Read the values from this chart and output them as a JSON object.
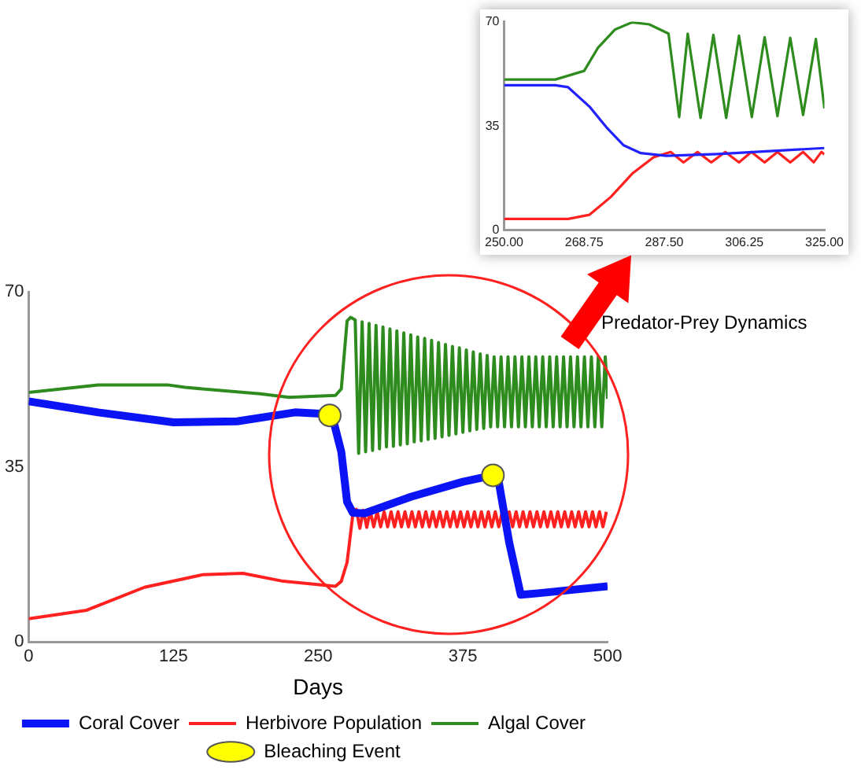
{
  "chart_data": [
    {
      "type": "line",
      "annotations": [
        "Predator-Prey Dynamics"
      ],
      "xlim": [
        250,
        325
      ],
      "xticks": [
        {
          "value": 250,
          "label": "250.00"
        },
        {
          "value": 268.75,
          "label": "268.75"
        },
        {
          "value": 287.5,
          "label": "287.50"
        },
        {
          "value": 306.25,
          "label": "306.25"
        },
        {
          "value": 325,
          "label": "325.00"
        }
      ],
      "ylim": [
        0,
        70
      ],
      "yticks": [
        0,
        35,
        70
      ],
      "series": [
        {
          "color": "#2e8b1e",
          "x": [
            250,
            262,
            268.75,
            272,
            276,
            280,
            284,
            288.5,
            291,
            293,
            296,
            299,
            302,
            305,
            308,
            311,
            314,
            317,
            320,
            323,
            325
          ],
          "values": [
            50.6,
            50.6,
            53.5,
            61.3,
            67.4,
            69.8,
            69.1,
            66,
            38,
            66,
            37.7,
            65.6,
            37.7,
            65.3,
            38,
            64.8,
            38.3,
            64.6,
            38.7,
            64.2,
            40.9
          ]
        },
        {
          "color": "#2222ff",
          "x": [
            250,
            262,
            265,
            270,
            274,
            278,
            282,
            288,
            300,
            325
          ],
          "values": [
            48.7,
            48.7,
            48,
            41.5,
            34.5,
            28.5,
            25.9,
            25,
            25.6,
            27.6
          ]
        },
        {
          "color": "#ff2020",
          "x": [
            250,
            265,
            270,
            275,
            280,
            285,
            289,
            292,
            295.3,
            298.5,
            301.8,
            305,
            307.9,
            311,
            314,
            317,
            320,
            322.5,
            324.3,
            325
          ],
          "values": [
            3.8,
            3.8,
            5.2,
            11.2,
            19,
            24.5,
            26.3,
            22.8,
            26.3,
            22.8,
            26.3,
            22.8,
            26.3,
            22.8,
            26.3,
            22.8,
            26.3,
            22.8,
            26.3,
            25.5
          ]
        }
      ]
    },
    {
      "type": "line",
      "xlabel": "Days",
      "legend": "bottom",
      "xlim": [
        0,
        500
      ],
      "xticks": [
        0,
        125,
        250,
        375,
        500
      ],
      "ylim": [
        0,
        70
      ],
      "yticks": [
        0,
        35,
        70
      ],
      "series": [
        {
          "name": "Coral Cover",
          "color": "#0a14f5",
          "x": [
            0,
            60,
            125,
            180,
            230,
            255,
            262,
            270,
            275,
            280,
            290,
            330,
            375,
            401,
            406,
            415,
            425,
            440,
            500
          ],
          "values": [
            48.1,
            45.9,
            43.9,
            44.1,
            45.9,
            45.6,
            45.3,
            38,
            28,
            25.8,
            25.7,
            29,
            32,
            33.3,
            32,
            19.9,
            9.4,
            9.7,
            11.1
          ]
        },
        {
          "name": "Herbivore Population",
          "color": "#ff2020",
          "x": [
            0,
            50,
            100,
            150,
            185,
            220,
            265,
            270,
            275,
            280,
            283,
            286,
            289,
            292,
            295,
            298,
            301,
            304,
            307,
            310,
            313,
            316,
            319,
            322,
            325,
            328,
            331,
            334,
            337,
            340,
            343,
            346,
            349,
            352,
            355,
            358,
            361,
            364,
            367,
            370,
            373,
            376,
            379,
            382,
            385,
            388,
            391,
            394,
            397,
            400,
            403,
            406,
            409,
            412,
            415,
            418,
            421,
            424,
            427,
            430,
            433,
            436,
            439,
            442,
            445,
            448,
            451,
            454,
            457,
            460,
            463,
            466,
            469,
            472,
            475,
            478,
            481,
            484,
            487,
            490,
            493,
            496,
            499
          ],
          "values": [
            4.6,
            6.3,
            10.9,
            13.4,
            13.7,
            12.1,
            11.1,
            12.1,
            15.9,
            25.5,
            26.5,
            22.7,
            26.3,
            22.9,
            26.2,
            23,
            26,
            23,
            26,
            23,
            26,
            23,
            26,
            23,
            26,
            23,
            26,
            23,
            26,
            23,
            26,
            23,
            26,
            23,
            26,
            23,
            26,
            23,
            26,
            23,
            26,
            23,
            26,
            23,
            26,
            23,
            26,
            23,
            26,
            23,
            26,
            23,
            26,
            23,
            26,
            23,
            26,
            23,
            26,
            23,
            26,
            23,
            26,
            23,
            26,
            23,
            26,
            23,
            26,
            23,
            26,
            23,
            26,
            23,
            26,
            23,
            26,
            23,
            26,
            23,
            26,
            23,
            26
          ]
        },
        {
          "name": "Algal Cover",
          "color": "#2e8b1e",
          "x": [
            0,
            60,
            120,
            135,
            200,
            225,
            265,
            270,
            275,
            278,
            282,
            285,
            288,
            291,
            294,
            297,
            300,
            303,
            306,
            309,
            312,
            315,
            318,
            321,
            324,
            327,
            330,
            333,
            336,
            339,
            342,
            345,
            348,
            351,
            354,
            357,
            360,
            363,
            366,
            369,
            372,
            375,
            378,
            381,
            384,
            387,
            390,
            393,
            396,
            399,
            402,
            405,
            408,
            411,
            414,
            417,
            420,
            423,
            426,
            429,
            432,
            435,
            438,
            441,
            444,
            447,
            450,
            453,
            456,
            459,
            462,
            465,
            468,
            471,
            474,
            477,
            480,
            483,
            486,
            489,
            492,
            495,
            498,
            500
          ],
          "values": [
            49.9,
            51.4,
            51.4,
            50.9,
            49.6,
            48.9,
            49.3,
            50.6,
            64.2,
            64.9,
            64.4,
            37.7,
            64,
            38,
            63.7,
            38.3,
            63.3,
            38.6,
            63,
            39,
            62.6,
            39.1,
            62.2,
            39.4,
            61.8,
            39.6,
            61.4,
            40,
            61,
            40.2,
            60.7,
            40.5,
            60.3,
            40.7,
            59.9,
            41,
            59.5,
            41.3,
            59.1,
            41.6,
            58.8,
            41.9,
            58.4,
            42.2,
            58,
            42.5,
            57.6,
            42.7,
            57.3,
            43,
            57,
            43,
            57,
            43,
            57,
            43,
            57,
            43,
            57,
            43,
            57,
            43,
            57,
            43,
            57,
            43,
            57,
            43,
            57,
            43,
            57,
            43,
            57,
            43,
            57,
            43,
            57,
            43,
            57,
            43,
            57,
            43,
            57,
            48.6
          ]
        },
        {
          "name": "Bleaching Event",
          "type": "scatter",
          "marker": "circle",
          "color": "#ffff00",
          "x": [
            260,
            401
          ],
          "values": [
            45.3,
            33.3
          ]
        }
      ]
    }
  ]
}
